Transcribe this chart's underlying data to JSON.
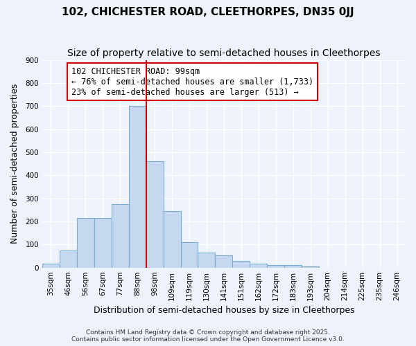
{
  "title": "102, CHICHESTER ROAD, CLEETHORPES, DN35 0JJ",
  "subtitle": "Size of property relative to semi-detached houses in Cleethorpes",
  "xlabel": "Distribution of semi-detached houses by size in Cleethorpes",
  "ylabel": "Number of semi-detached properties",
  "bin_labels": [
    "35sqm",
    "46sqm",
    "56sqm",
    "67sqm",
    "77sqm",
    "88sqm",
    "98sqm",
    "109sqm",
    "119sqm",
    "130sqm",
    "141sqm",
    "151sqm",
    "162sqm",
    "172sqm",
    "183sqm",
    "193sqm",
    "204sqm",
    "214sqm",
    "225sqm",
    "235sqm",
    "246sqm"
  ],
  "bar_values": [
    18,
    75,
    215,
    215,
    275,
    700,
    460,
    245,
    110,
    65,
    52,
    30,
    18,
    10,
    12,
    5,
    0,
    0,
    0,
    0,
    0
  ],
  "bar_color": "#c5d8f0",
  "bar_edge_color": "#7aadd4",
  "vline_x_index": 6,
  "vline_color": "#cc0000",
  "annotation_text": "102 CHICHESTER ROAD: 99sqm\n← 76% of semi-detached houses are smaller (1,733)\n23% of semi-detached houses are larger (513) →",
  "annotation_box_color": "white",
  "annotation_box_edge_color": "#cc0000",
  "ylim": [
    0,
    900
  ],
  "yticks": [
    0,
    100,
    200,
    300,
    400,
    500,
    600,
    700,
    800,
    900
  ],
  "bg_color": "#eef3fb",
  "plot_bg_color": "#eef3fb",
  "grid_color": "white",
  "footer_text": "Contains HM Land Registry data © Crown copyright and database right 2025.\nContains public sector information licensed under the Open Government Licence v3.0.",
  "title_fontsize": 11,
  "subtitle_fontsize": 10,
  "axis_label_fontsize": 9,
  "tick_fontsize": 7.5,
  "annotation_fontsize": 8.5,
  "footer_fontsize": 6.5
}
